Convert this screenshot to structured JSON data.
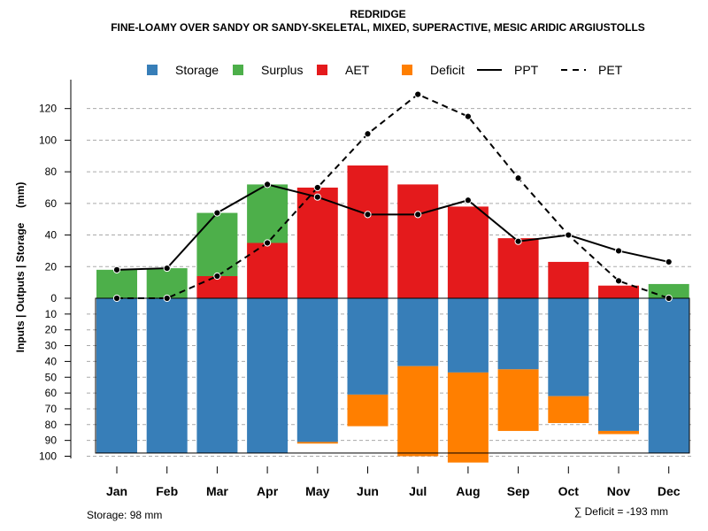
{
  "chart_data": {
    "type": "bar",
    "title": "REDRIDGE",
    "subtitle": "FINE-LOAMY OVER SANDY OR SANDY-SKELETAL, MIXED, SUPERACTIVE, MESIC ARIDIC ARGIUSTOLLS",
    "ylabel": "Inputs | Outputs | Storage     (mm)",
    "categories": [
      "Jan",
      "Feb",
      "Mar",
      "Apr",
      "May",
      "Jun",
      "Jul",
      "Aug",
      "Sep",
      "Oct",
      "Nov",
      "Dec"
    ],
    "upper_ylim": [
      0,
      130
    ],
    "upper_ticks": [
      "0",
      "20",
      "40",
      "60",
      "80",
      "100",
      "120"
    ],
    "lower_ylim": [
      0,
      100
    ],
    "lower_ticks": [
      "10",
      "20",
      "30",
      "40",
      "50",
      "60",
      "70",
      "80",
      "90",
      "100"
    ],
    "legend": [
      {
        "label": "Storage",
        "kind": "box",
        "color": "#377EB8"
      },
      {
        "label": "Surplus",
        "kind": "box",
        "color": "#4DAF4A"
      },
      {
        "label": "AET",
        "kind": "box",
        "color": "#E41A1C"
      },
      {
        "label": "Deficit",
        "kind": "box",
        "color": "#FF7F00"
      },
      {
        "label": "PPT",
        "kind": "solid"
      },
      {
        "label": "PET",
        "kind": "dashed"
      }
    ],
    "series": [
      {
        "name": "AET",
        "color": "#E41A1C",
        "values": [
          0,
          0,
          14,
          35,
          70,
          84,
          72,
          58,
          38,
          23,
          8,
          0
        ]
      },
      {
        "name": "Surplus",
        "color": "#4DAF4A",
        "values": [
          18,
          19,
          40,
          37,
          0,
          0,
          0,
          0,
          0,
          0,
          0,
          9
        ]
      },
      {
        "name": "Storage",
        "color": "#377EB8",
        "values": [
          98,
          98,
          98,
          98,
          91,
          61,
          43,
          47,
          45,
          62,
          84,
          98
        ]
      },
      {
        "name": "Deficit",
        "color": "#FF7F00",
        "values": [
          0,
          0,
          0,
          0,
          1,
          20,
          57,
          57,
          39,
          17,
          2,
          0
        ]
      },
      {
        "name": "PPT",
        "values": [
          18,
          19,
          54,
          72,
          64,
          53,
          53,
          62,
          36,
          40,
          30,
          23
        ]
      },
      {
        "name": "PET",
        "values": [
          0,
          0,
          14,
          35,
          70,
          104,
          129,
          115,
          76,
          40,
          11,
          0
        ]
      }
    ],
    "storage_note": "Storage: 98 mm",
    "deficit_note": "∑ Deficit = -193 mm"
  }
}
